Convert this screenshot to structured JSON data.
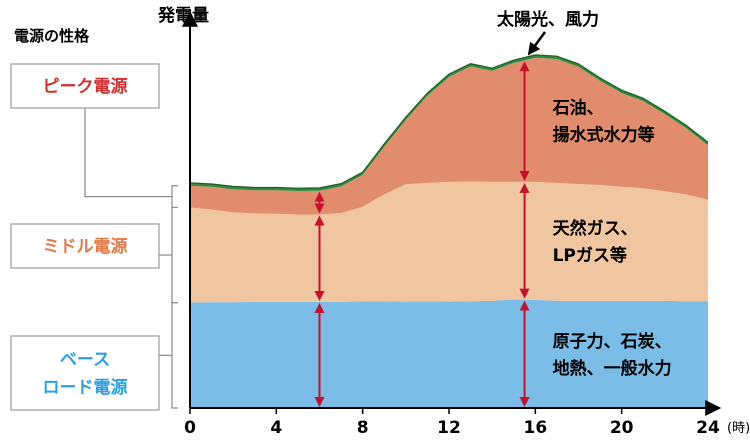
{
  "chart_data": {
    "type": "area",
    "stacked": true,
    "title": "",
    "ylabel": "発電量",
    "xlabel": "",
    "x_unit": "(時)",
    "xlim": [
      0,
      24
    ],
    "x_ticks": [
      0,
      4,
      8,
      12,
      16,
      20,
      24
    ],
    "ylim": [
      0,
      100
    ],
    "grid": false,
    "legend_heading": "電源の性格",
    "x": [
      0,
      1,
      2,
      3,
      4,
      5,
      6,
      7,
      8,
      9,
      10,
      11,
      12,
      13,
      14,
      15,
      16,
      17,
      18,
      19,
      20,
      21,
      22,
      23,
      24
    ],
    "series": [
      {
        "name": "原子力、石炭、地熱、一般水力",
        "color": "#7bbde6",
        "values": [
          30.1,
          30.2,
          30.2,
          30.3,
          30.3,
          30.3,
          30.3,
          30.3,
          30.5,
          30.5,
          30.4,
          30.5,
          30.4,
          30.5,
          30.6,
          31.0,
          30.9,
          30.6,
          30.6,
          30.6,
          30.6,
          30.6,
          30.6,
          30.5,
          30.5
        ]
      },
      {
        "name": "天然ガス、LPガス等",
        "color": "#f0c6a0",
        "values": [
          27.2,
          26.5,
          25.7,
          25.3,
          25.2,
          25.0,
          25.0,
          25.4,
          27.0,
          30.6,
          33.5,
          33.8,
          34.2,
          34.2,
          34.0,
          33.6,
          33.7,
          33.7,
          33.4,
          33.1,
          32.6,
          32.2,
          31.3,
          30.5,
          29.0
        ]
      },
      {
        "name": "石油、揚水式水力等",
        "color": "#e08c6d",
        "values": [
          6.2,
          6.5,
          6.6,
          6.6,
          6.7,
          6.7,
          6.8,
          7.6,
          9.1,
          13.6,
          18.4,
          24.9,
          30.0,
          32.9,
          31.7,
          34.0,
          35.5,
          35.4,
          33.5,
          29.8,
          26.8,
          24.9,
          22.1,
          18.9,
          15.6
        ]
      },
      {
        "name": "太陽光、風力",
        "color": "#2e8b3a",
        "values": [
          0.8,
          0.8,
          0.8,
          0.8,
          0.8,
          0.8,
          0.8,
          0.8,
          0.8,
          0.8,
          0.8,
          0.8,
          0.8,
          0.8,
          0.8,
          0.8,
          0.8,
          0.8,
          0.8,
          0.8,
          0.8,
          0.8,
          0.8,
          0.8,
          0.8
        ]
      }
    ],
    "annotations": [
      {
        "text": "太陽光、風力",
        "series": 3,
        "color": "#000000"
      },
      {
        "lines": [
          "石油、",
          "揚水式水力等"
        ],
        "series": 2,
        "color": "#000000"
      },
      {
        "lines": [
          "天然ガス、",
          "LPガス等"
        ],
        "series": 1,
        "color": "#000000"
      },
      {
        "lines": [
          "原子力、石炭、",
          "地熱、一般水力"
        ],
        "series": 0,
        "color": "#000000"
      }
    ],
    "categories": [
      {
        "lines": [
          "ピーク電源"
        ],
        "color": "#d32f2f",
        "series": 2
      },
      {
        "lines": [
          "ミドル電源"
        ],
        "color": "#e07a4a",
        "series": 1
      },
      {
        "lines": [
          "ベース",
          "ロード電源"
        ],
        "color": "#2d9fe0",
        "series": 0
      }
    ],
    "range_arrows": [
      {
        "x": 6,
        "color": "#c8102e"
      },
      {
        "x": 15.5,
        "color": "#c8102e"
      }
    ]
  }
}
